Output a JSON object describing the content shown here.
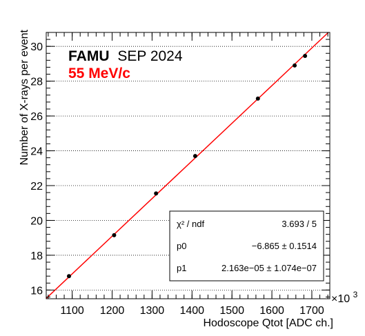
{
  "chart_data": {
    "type": "scatter",
    "xlabel": "Hodoscope Qtot [ADC ch.]",
    "ylabel": "Number of X-rays per event",
    "x_exponent_label": "×10",
    "x_exponent_power": "3",
    "xlim": [
      1035,
      1745
    ],
    "ylim": [
      15.5,
      30.8
    ],
    "x_ticks": [
      1100,
      1200,
      1300,
      1400,
      1500,
      1600,
      1700
    ],
    "y_ticks": [
      16,
      18,
      20,
      22,
      24,
      26,
      28,
      30
    ],
    "grid": "horizontal",
    "annotations": {
      "experiment_bold": "FAMU",
      "experiment_date": "SEP 2024",
      "beam_momentum": "55 MeV/c"
    },
    "series": [
      {
        "type": "scatter",
        "color": "#000000",
        "x": [
          1092,
          1205,
          1310,
          1408,
          1565,
          1657,
          1683
        ],
        "y": [
          16.8,
          19.15,
          21.55,
          23.7,
          27.0,
          28.9,
          29.45
        ]
      },
      {
        "type": "line",
        "color": "#ff0000",
        "slope": 0.02163,
        "intercept": -6.865
      }
    ],
    "stats": [
      {
        "label": "χ² / ndf",
        "value": "3.693 / 5"
      },
      {
        "label": "p0",
        "value": "−6.865 ± 0.1514"
      },
      {
        "label": "p1",
        "value": "2.163e−05 ± 1.074e−07"
      }
    ]
  }
}
